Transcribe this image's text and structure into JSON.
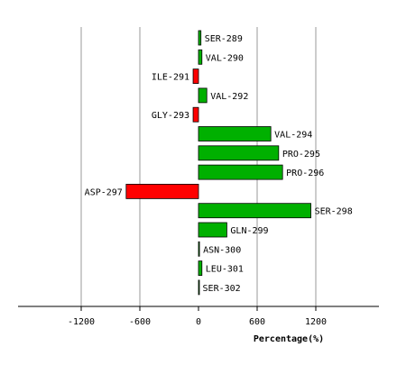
{
  "chart_data": {
    "type": "bar",
    "orientation": "horizontal",
    "title": "",
    "xlabel": "Percentage(%)",
    "ylabel": "",
    "xlim": [
      -1600,
      1800
    ],
    "xticks": [
      -1200,
      -600,
      0,
      600,
      1200
    ],
    "grid": true,
    "colors": {
      "positive": "#00b000",
      "negative": "#ff0000",
      "edge": "#000000",
      "grid": "#999999"
    },
    "categories": [
      "SER-289",
      "VAL-290",
      "ILE-291",
      "VAL-292",
      "GLY-293",
      "VAL-294",
      "PRO-295",
      "PRO-296",
      "ASP-297",
      "SER-298",
      "GLN-299",
      "ASN-300",
      "LEU-301",
      "SER-302"
    ],
    "values": [
      25,
      35,
      -55,
      85,
      -55,
      740,
      820,
      860,
      -740,
      1150,
      290,
      10,
      35,
      5
    ]
  }
}
